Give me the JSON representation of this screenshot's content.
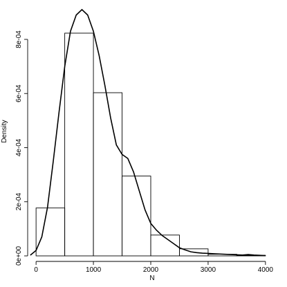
{
  "chart_data": {
    "type": "histogram",
    "title": "",
    "xlabel": "N",
    "ylabel": "Density",
    "xlim": [
      -50,
      4050
    ],
    "ylim": [
      0,
      0.00092
    ],
    "x_ticks": [
      0,
      1000,
      2000,
      3000,
      4000
    ],
    "x_tick_labels": [
      "0",
      "1000",
      "2000",
      "3000",
      "4000"
    ],
    "y_ticks": [
      0,
      0.0002,
      0.0004,
      0.0006,
      0.0008
    ],
    "y_tick_labels": [
      "0e+00",
      "2e-04",
      "4e-04",
      "6e-04",
      "8e-04"
    ],
    "bins": [
      {
        "from": 0,
        "to": 500,
        "density": 0.000177
      },
      {
        "from": 500,
        "to": 1000,
        "density": 0.000823
      },
      {
        "from": 1000,
        "to": 1500,
        "density": 0.000603
      },
      {
        "from": 1500,
        "to": 2000,
        "density": 0.000295
      },
      {
        "from": 2000,
        "to": 2500,
        "density": 7.7e-05
      },
      {
        "from": 2500,
        "to": 3000,
        "density": 2.6e-05
      },
      {
        "from": 3000,
        "to": 3500,
        "density": 6e-06
      },
      {
        "from": 3500,
        "to": 4000,
        "density": 2e-06
      }
    ],
    "density_curve": {
      "x": [
        -100,
        0,
        100,
        200,
        300,
        400,
        500,
        600,
        700,
        800,
        900,
        1000,
        1100,
        1200,
        1300,
        1400,
        1500,
        1600,
        1700,
        1800,
        1900,
        2000,
        2100,
        2200,
        2300,
        2400,
        2500,
        2600,
        2700,
        2800,
        2900,
        3000,
        3100,
        3200,
        3300,
        3400,
        3500,
        3600,
        3700,
        3800,
        3900,
        4000
      ],
      "y": [
        2.5e-06,
        2e-05,
        7e-05,
        0.00018,
        0.00035,
        0.00053,
        0.0007,
        0.00083,
        0.00089,
        0.00091,
        0.00089,
        0.00083,
        0.00074,
        0.00063,
        0.00051,
        0.00041,
        0.000375,
        0.00036,
        0.00031,
        0.00024,
        0.00017,
        0.00012,
        9.5e-05,
        7.5e-05,
        6e-05,
        4.5e-05,
        3e-05,
        2.2e-05,
        1.5e-05,
        1.2e-05,
        1e-05,
        9e-06,
        8e-06,
        7e-06,
        6e-06,
        5e-06,
        4e-06,
        3e-06,
        5e-06,
        3e-06,
        2e-06,
        1e-06
      ]
    }
  }
}
